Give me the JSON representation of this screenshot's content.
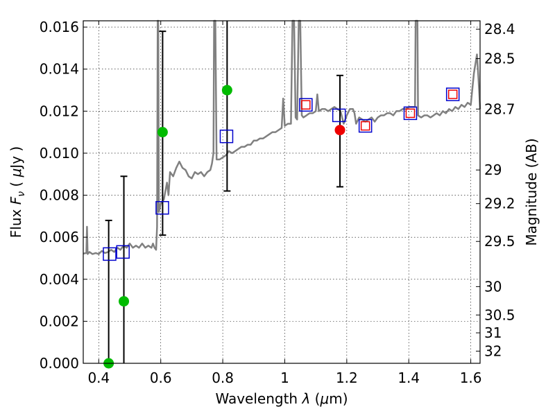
{
  "chart_data": {
    "type": "scatter",
    "title": "",
    "xlabel": "Wavelength  λ (μm)",
    "ylabel_left": "Flux  F_ν  ( μJy )",
    "ylabel_left_parts": {
      "prefix": "Flux ",
      "symbol": "F",
      "subscript": "ν",
      "mid": " ( ",
      "mu": "μ",
      "unit": "Jy )"
    },
    "xlabel_parts": {
      "prefix": "Wavelength  ",
      "symbol": "λ",
      "paren": " (",
      "mu": "μ",
      "unit": "m)"
    },
    "ylabel_right": "Magnitude (AB)",
    "xlim": [
      0.35,
      1.63
    ],
    "ylim": [
      0.0,
      0.0163
    ],
    "grid": true,
    "x_ticks": [
      {
        "value": 0.4,
        "label": "0.4"
      },
      {
        "value": 0.6,
        "label": "0.6"
      },
      {
        "value": 0.8,
        "label": "0.8"
      },
      {
        "value": 1.0,
        "label": "1"
      },
      {
        "value": 1.2,
        "label": "1.2"
      },
      {
        "value": 1.4,
        "label": "1.4"
      },
      {
        "value": 1.6,
        "label": "1.6"
      }
    ],
    "y_ticks": [
      {
        "value": 0.0,
        "label": "0.000"
      },
      {
        "value": 0.002,
        "label": "0.002"
      },
      {
        "value": 0.004,
        "label": "0.004"
      },
      {
        "value": 0.006,
        "label": "0.006"
      },
      {
        "value": 0.008,
        "label": "0.008"
      },
      {
        "value": 0.01,
        "label": "0.010"
      },
      {
        "value": 0.012,
        "label": "0.012"
      },
      {
        "value": 0.014,
        "label": "0.014"
      },
      {
        "value": 0.016,
        "label": "0.016"
      }
    ],
    "right_ticks": [
      {
        "label": "28.4",
        "flux": 0.0159
      },
      {
        "label": "28.5",
        "flux": 0.0145
      },
      {
        "label": "28.7",
        "flux": 0.0121
      },
      {
        "label": "29",
        "flux": 0.0092
      },
      {
        "label": "29.2",
        "flux": 0.0076
      },
      {
        "label": "29.5",
        "flux": 0.0058
      },
      {
        "label": "30",
        "flux": 0.00365
      },
      {
        "label": "30.5",
        "flux": 0.0023
      },
      {
        "label": "31",
        "flux": 0.00145
      },
      {
        "label": "32",
        "flux": 0.00058
      }
    ],
    "series": [
      {
        "name": "template spectrum",
        "kind": "line",
        "color": "#808080",
        "points": [
          [
            0.35,
            0.00522
          ],
          [
            0.36,
            0.00525
          ],
          [
            0.362,
            0.0065
          ],
          [
            0.364,
            0.0052
          ],
          [
            0.37,
            0.0053
          ],
          [
            0.38,
            0.0052
          ],
          [
            0.39,
            0.00525
          ],
          [
            0.4,
            0.0052
          ],
          [
            0.41,
            0.00535
          ],
          [
            0.42,
            0.00525
          ],
          [
            0.43,
            0.0053
          ],
          [
            0.44,
            0.0054
          ],
          [
            0.45,
            0.0053
          ],
          [
            0.46,
            0.0055
          ],
          [
            0.47,
            0.0054
          ],
          [
            0.48,
            0.0056
          ],
          [
            0.49,
            0.0055
          ],
          [
            0.5,
            0.0057
          ],
          [
            0.51,
            0.0055
          ],
          [
            0.52,
            0.0056
          ],
          [
            0.53,
            0.0055
          ],
          [
            0.54,
            0.0057
          ],
          [
            0.55,
            0.0055
          ],
          [
            0.56,
            0.0056
          ],
          [
            0.57,
            0.0055
          ],
          [
            0.575,
            0.0057
          ],
          [
            0.58,
            0.0055
          ],
          [
            0.585,
            0.0054
          ],
          [
            0.588,
            0.0065
          ],
          [
            0.59,
            0.0163
          ],
          [
            0.592,
            0.0163
          ],
          [
            0.594,
            0.0072
          ],
          [
            0.6,
            0.0076
          ],
          [
            0.61,
            0.0078
          ],
          [
            0.62,
            0.0086
          ],
          [
            0.625,
            0.008
          ],
          [
            0.63,
            0.0091
          ],
          [
            0.64,
            0.0089
          ],
          [
            0.65,
            0.0093
          ],
          [
            0.66,
            0.0096
          ],
          [
            0.67,
            0.0093
          ],
          [
            0.68,
            0.0092
          ],
          [
            0.69,
            0.0089
          ],
          [
            0.7,
            0.0088
          ],
          [
            0.71,
            0.0091
          ],
          [
            0.72,
            0.009
          ],
          [
            0.73,
            0.0091
          ],
          [
            0.74,
            0.0089
          ],
          [
            0.75,
            0.0091
          ],
          [
            0.76,
            0.0092
          ],
          [
            0.765,
            0.0095
          ],
          [
            0.77,
            0.01
          ],
          [
            0.772,
            0.0163
          ],
          [
            0.776,
            0.0163
          ],
          [
            0.78,
            0.0097
          ],
          [
            0.79,
            0.0097
          ],
          [
            0.8,
            0.0098
          ],
          [
            0.81,
            0.0099
          ],
          [
            0.82,
            0.0101
          ],
          [
            0.83,
            0.01
          ],
          [
            0.84,
            0.0101
          ],
          [
            0.85,
            0.0102
          ],
          [
            0.86,
            0.0103
          ],
          [
            0.87,
            0.0103
          ],
          [
            0.88,
            0.0104
          ],
          [
            0.89,
            0.0104
          ],
          [
            0.9,
            0.0106
          ],
          [
            0.91,
            0.0106
          ],
          [
            0.92,
            0.0107
          ],
          [
            0.93,
            0.0107
          ],
          [
            0.94,
            0.0108
          ],
          [
            0.95,
            0.0109
          ],
          [
            0.96,
            0.011
          ],
          [
            0.97,
            0.011
          ],
          [
            0.98,
            0.0111
          ],
          [
            0.99,
            0.0112
          ],
          [
            0.995,
            0.0126
          ],
          [
            1.0,
            0.0113
          ],
          [
            1.01,
            0.0114
          ],
          [
            1.02,
            0.0114
          ],
          [
            1.025,
            0.0163
          ],
          [
            1.03,
            0.0163
          ],
          [
            1.035,
            0.0117
          ],
          [
            1.04,
            0.0116
          ],
          [
            1.045,
            0.0163
          ],
          [
            1.05,
            0.0163
          ],
          [
            1.055,
            0.0118
          ],
          [
            1.06,
            0.0117
          ],
          [
            1.07,
            0.0118
          ],
          [
            1.08,
            0.0119
          ],
          [
            1.09,
            0.0119
          ],
          [
            1.1,
            0.012
          ],
          [
            1.105,
            0.0128
          ],
          [
            1.11,
            0.012
          ],
          [
            1.12,
            0.0121
          ],
          [
            1.13,
            0.0121
          ],
          [
            1.14,
            0.012
          ],
          [
            1.15,
            0.0121
          ],
          [
            1.16,
            0.0122
          ],
          [
            1.17,
            0.0121
          ],
          [
            1.18,
            0.012
          ],
          [
            1.19,
            0.0114
          ],
          [
            1.2,
            0.0118
          ],
          [
            1.21,
            0.0121
          ],
          [
            1.22,
            0.0121
          ],
          [
            1.225,
            0.0119
          ],
          [
            1.23,
            0.0114
          ],
          [
            1.24,
            0.0117
          ],
          [
            1.25,
            0.0116
          ],
          [
            1.26,
            0.0115
          ],
          [
            1.27,
            0.0116
          ],
          [
            1.28,
            0.0117
          ],
          [
            1.29,
            0.0115
          ],
          [
            1.3,
            0.0117
          ],
          [
            1.31,
            0.0118
          ],
          [
            1.32,
            0.0118
          ],
          [
            1.33,
            0.0119
          ],
          [
            1.34,
            0.0119
          ],
          [
            1.35,
            0.0118
          ],
          [
            1.36,
            0.012
          ],
          [
            1.37,
            0.012
          ],
          [
            1.38,
            0.0121
          ],
          [
            1.39,
            0.0121
          ],
          [
            1.4,
            0.0122
          ],
          [
            1.41,
            0.0122
          ],
          [
            1.42,
            0.0122
          ],
          [
            1.422,
            0.0163
          ],
          [
            1.428,
            0.0163
          ],
          [
            1.43,
            0.0118
          ],
          [
            1.44,
            0.0117
          ],
          [
            1.45,
            0.0118
          ],
          [
            1.46,
            0.0118
          ],
          [
            1.47,
            0.0117
          ],
          [
            1.48,
            0.0118
          ],
          [
            1.49,
            0.0119
          ],
          [
            1.5,
            0.0118
          ],
          [
            1.51,
            0.012
          ],
          [
            1.52,
            0.0119
          ],
          [
            1.53,
            0.0121
          ],
          [
            1.54,
            0.012
          ],
          [
            1.55,
            0.0122
          ],
          [
            1.56,
            0.0121
          ],
          [
            1.57,
            0.0123
          ],
          [
            1.58,
            0.0122
          ],
          [
            1.59,
            0.0124
          ],
          [
            1.6,
            0.0123
          ],
          [
            1.61,
            0.0138
          ],
          [
            1.62,
            0.0147
          ],
          [
            1.625,
            0.0135
          ],
          [
            1.63,
            0.0121
          ]
        ]
      },
      {
        "name": "observed flux",
        "kind": "points",
        "marker": "circle",
        "color": "#00bb00",
        "points": [
          [
            0.432,
            0.0
          ],
          [
            0.481,
            0.00295
          ],
          [
            0.606,
            0.011
          ],
          [
            0.814,
            0.013
          ]
        ]
      },
      {
        "name": "observed flux (alt)",
        "kind": "points",
        "marker": "circle",
        "color": "#ee0000",
        "points": [
          [
            1.178,
            0.0111
          ]
        ]
      },
      {
        "name": "error bars",
        "kind": "errorbar",
        "color": "#000000",
        "points": [
          {
            "x": 0.432,
            "low": 0.0,
            "high": 0.0068
          },
          {
            "x": 0.481,
            "low": 0.0,
            "high": 0.0089
          },
          {
            "x": 0.606,
            "low": 0.0061,
            "high": 0.0158
          },
          {
            "x": 0.814,
            "low": 0.0082,
            "high": 0.0163
          },
          {
            "x": 1.178,
            "low": 0.0084,
            "high": 0.0137
          }
        ]
      },
      {
        "name": "model photometry",
        "kind": "points",
        "marker": "square",
        "color": "#0000cc",
        "points": [
          [
            0.435,
            0.0052
          ],
          [
            0.478,
            0.0053
          ],
          [
            0.605,
            0.0074
          ],
          [
            0.812,
            0.0108
          ],
          [
            1.068,
            0.0123
          ],
          [
            1.175,
            0.0118
          ],
          [
            1.26,
            0.0113
          ],
          [
            1.405,
            0.0119
          ],
          [
            1.542,
            0.0128
          ]
        ]
      },
      {
        "name": "observed photometry (small)",
        "kind": "points",
        "marker": "square-small",
        "color": "#ee0000",
        "points": [
          [
            1.068,
            0.0123
          ],
          [
            1.26,
            0.0113
          ],
          [
            1.405,
            0.0119
          ],
          [
            1.542,
            0.0128
          ]
        ]
      }
    ]
  }
}
